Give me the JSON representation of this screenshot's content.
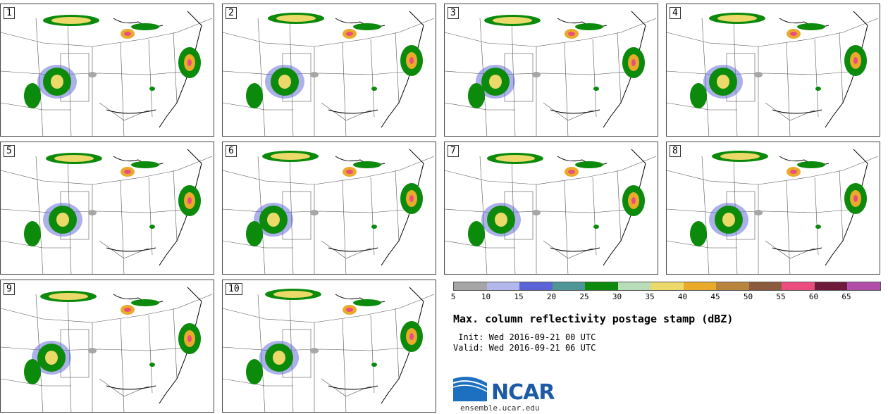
{
  "panels": [
    {
      "label": "1"
    },
    {
      "label": "2"
    },
    {
      "label": "3"
    },
    {
      "label": "4"
    },
    {
      "label": "5"
    },
    {
      "label": "6"
    },
    {
      "label": "7"
    },
    {
      "label": "8"
    },
    {
      "label": "9"
    },
    {
      "label": "10"
    }
  ],
  "colorbar": {
    "colors": [
      "#a6a6a6",
      "#b3b8ec",
      "#5a62d8",
      "#4e9696",
      "#0b8a0b",
      "#b9dcb9",
      "#ebd96a",
      "#eaaa2a",
      "#b9853d",
      "#8c5a3c",
      "#ec4d7f",
      "#6e1a3a",
      "#b04ea9"
    ],
    "ticks": [
      "5",
      "10",
      "15",
      "20",
      "25",
      "30",
      "35",
      "40",
      "45",
      "50",
      "55",
      "60",
      "65"
    ]
  },
  "title": "Max. column reflectivity postage stamp (dBZ)",
  "init": " Init: Wed 2016-09-21 00 UTC",
  "valid": "Valid: Wed 2016-09-21 06 UTC",
  "logo": {
    "text": "NCAR",
    "site": "ensemble.ucar.edu"
  }
}
